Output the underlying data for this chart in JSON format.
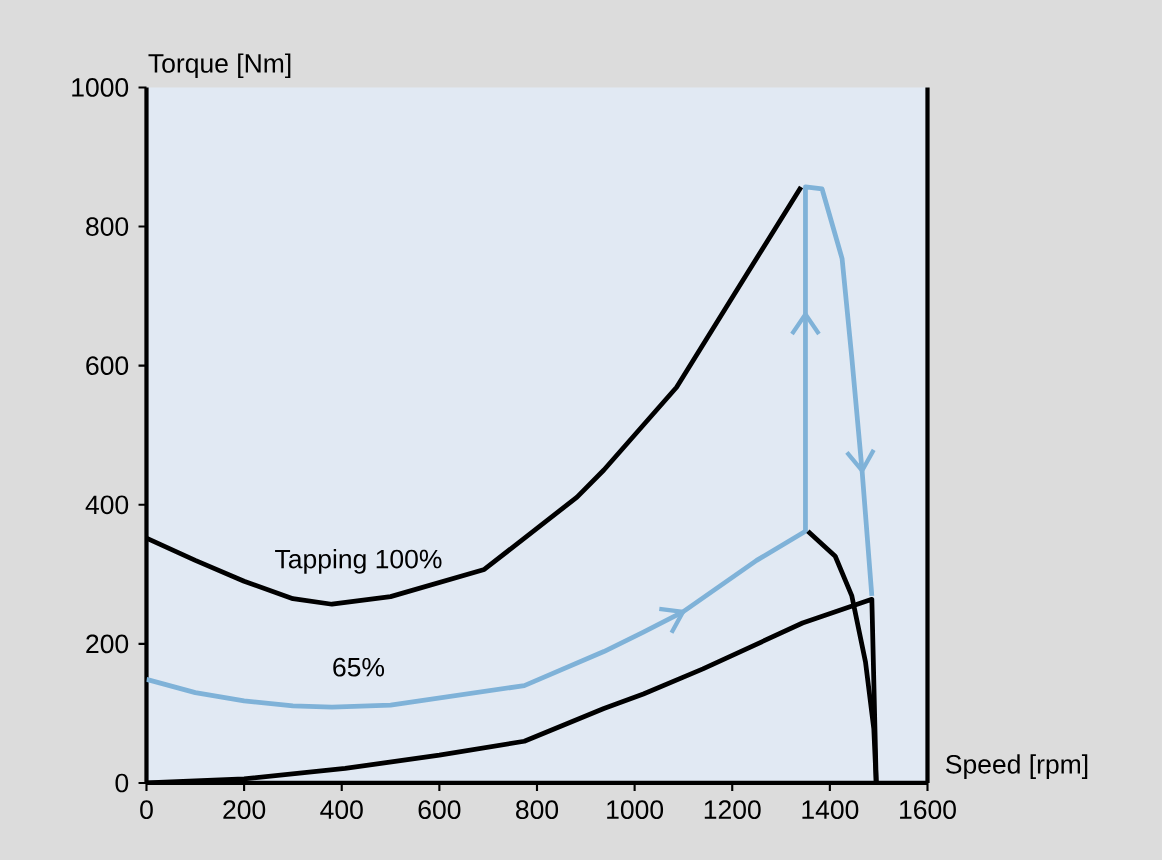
{
  "chart_data": {
    "type": "line",
    "xlabel": "Speed [rpm]",
    "ylabel": "Torque [Nm]",
    "xlim": [
      0,
      1600
    ],
    "ylim": [
      0,
      1000
    ],
    "xticks": [
      0,
      200,
      400,
      600,
      800,
      1000,
      1200,
      1400,
      1600
    ],
    "yticks": [
      0,
      200,
      400,
      600,
      800,
      1000
    ],
    "grid": false,
    "legend": false,
    "marker": "none",
    "line_style": "solid",
    "series": [
      {
        "name": "Tapping 100%",
        "color": "#000000",
        "x": [
          0,
          100,
          200,
          300,
          380,
          500,
          692,
          882,
          937,
          1086,
          1208,
          1341
        ],
        "values": [
          352,
          320,
          290,
          265,
          257,
          268,
          307,
          411,
          450,
          569,
          707,
          857
        ]
      },
      {
        "name": "65%",
        "color": "#7fb2d8",
        "x": [
          0,
          100,
          200,
          300,
          380,
          500,
          774,
          937,
          1018,
          1099,
          1250,
          1350,
          1350,
          1384,
          1425,
          1445,
          1466,
          1486
        ],
        "values": [
          149,
          130,
          118,
          111,
          109,
          112,
          140,
          189,
          217,
          246,
          320,
          362,
          857,
          854,
          754,
          611,
          449,
          269
        ]
      },
      {
        "color": "#000000",
        "x": [
          1355,
          1411,
          1445,
          1473,
          1490,
          1495
        ],
        "values": [
          362,
          326,
          269,
          174,
          78,
          0
        ]
      },
      {
        "color": "#000000",
        "x": [
          0,
          200,
          407,
          600,
          774,
          937,
          1018,
          1140,
          1344,
          1486,
          1495
        ],
        "values": [
          0,
          6,
          21,
          40,
          60,
          107,
          128,
          164,
          230,
          264,
          0
        ]
      }
    ]
  }
}
